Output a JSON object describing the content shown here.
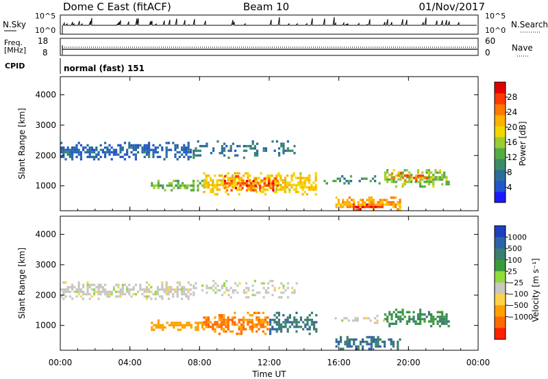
{
  "header": {
    "station": "Dome C East (fitACF)",
    "beam": "Beam 10",
    "date": "01/Nov/2017"
  },
  "summary_panels": {
    "nsky": {
      "label": "N.Sky",
      "ticks": [
        "10^5",
        "10^0"
      ]
    },
    "nsearch": {
      "label": "N.Search",
      "ticks": [
        "10^5",
        "10^0"
      ]
    },
    "freq": {
      "label_line1": "Freq.",
      "label_line2": "[MHz]",
      "ticks": [
        "18",
        "8"
      ]
    },
    "nave": {
      "label": "Nave",
      "ticks": [
        "60",
        "0"
      ]
    },
    "cpid": {
      "label": "CPID",
      "value": "normal (fast) 151"
    }
  },
  "chart_data": [
    {
      "type": "heatmap",
      "quantity": "power",
      "ylabel": "Slant Range [km]",
      "yticks": [
        1000,
        2000,
        3000,
        4000
      ],
      "ylim": [
        180,
        4600
      ],
      "xlim": [
        0,
        24
      ],
      "colorbar": {
        "label": "Power [dB]",
        "ticks": [
          4,
          8,
          12,
          16,
          20,
          24,
          28
        ],
        "range": [
          0,
          32
        ]
      },
      "regions": [
        {
          "t": [
            0.0,
            7.6
          ],
          "r": [
            1800,
            2450
          ],
          "value": 6,
          "density": 0.75
        },
        {
          "t": [
            7.6,
            13.6
          ],
          "r": [
            1850,
            2500
          ],
          "value": 8,
          "density": 0.4
        },
        {
          "t": [
            5.2,
            8.2
          ],
          "r": [
            850,
            1200
          ],
          "value": 14,
          "density": 0.75
        },
        {
          "t": [
            8.2,
            14.8
          ],
          "r": [
            650,
            1450
          ],
          "value": 20,
          "density": 0.85
        },
        {
          "t": [
            9.4,
            12.6
          ],
          "r": [
            850,
            1350
          ],
          "value": 27,
          "density": 0.7
        },
        {
          "t": [
            15.8,
            19.6
          ],
          "r": [
            200,
            650
          ],
          "value": 22,
          "density": 0.85
        },
        {
          "t": [
            16.8,
            18.6
          ],
          "r": [
            200,
            420
          ],
          "value": 29,
          "density": 0.9
        },
        {
          "t": [
            18.6,
            22.4
          ],
          "r": [
            900,
            1550
          ],
          "value": 15,
          "density": 0.75
        },
        {
          "t": [
            19.0,
            21.2
          ],
          "r": [
            1150,
            1450
          ],
          "value": 26,
          "density": 0.7
        },
        {
          "t": [
            15.0,
            18.6
          ],
          "r": [
            1050,
            1350
          ],
          "value": 10,
          "density": 0.35
        }
      ]
    },
    {
      "type": "heatmap",
      "quantity": "velocity",
      "xlabel": "Time UT",
      "ylabel": "Slant Range [km]",
      "yticks": [
        1000,
        2000,
        3000,
        4000
      ],
      "ylim": [
        180,
        4600
      ],
      "xlim": [
        0,
        24
      ],
      "xticks": [
        "00:00",
        "04:00",
        "08:00",
        "12:00",
        "16:00",
        "20:00",
        "00:00"
      ],
      "colorbar": {
        "label": "Velocity [m s⁻¹]",
        "ticks": [
          "1000",
          "500",
          "100",
          "25",
          "−25",
          "−100",
          "−500",
          "−1000"
        ]
      },
      "regions": [
        {
          "t": [
            0.0,
            7.6
          ],
          "r": [
            1800,
            2450
          ],
          "value": 0,
          "density": 0.75
        },
        {
          "t": [
            7.6,
            13.6
          ],
          "r": [
            1850,
            2500
          ],
          "value": 0,
          "density": 0.4
        },
        {
          "t": [
            5.2,
            8.2
          ],
          "r": [
            850,
            1200
          ],
          "value": -180,
          "density": 0.75
        },
        {
          "t": [
            8.2,
            12.0
          ],
          "r": [
            650,
            1450
          ],
          "value": -300,
          "density": 0.85
        },
        {
          "t": [
            12.0,
            14.8
          ],
          "r": [
            650,
            1450
          ],
          "value": 250,
          "density": 0.75
        },
        {
          "t": [
            15.8,
            19.6
          ],
          "r": [
            200,
            650
          ],
          "value": 300,
          "density": 0.8
        },
        {
          "t": [
            18.6,
            22.4
          ],
          "r": [
            900,
            1550
          ],
          "value": 100,
          "density": 0.75
        },
        {
          "t": [
            15.0,
            18.6
          ],
          "r": [
            1050,
            1350
          ],
          "value": 0,
          "density": 0.35
        }
      ]
    }
  ]
}
